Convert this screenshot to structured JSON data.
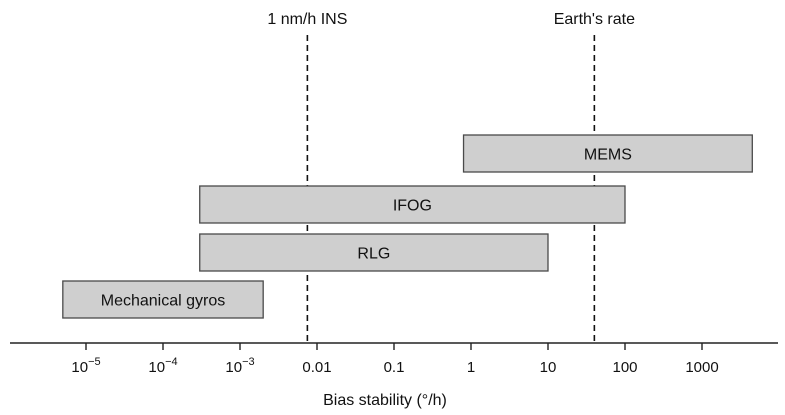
{
  "chart_data": {
    "type": "bar",
    "title": "",
    "xlabel": "Bias stability (°/h)",
    "ylabel": "",
    "x_scale": "log",
    "xlim": [
      3e-06,
      8000
    ],
    "grid": false,
    "legend": "none",
    "colors": {
      "bar_fill": "#cfcfcf",
      "bar_stroke": "#4a4a4a",
      "axis": "#222222",
      "reference_line": "#111111"
    },
    "ticks": [
      {
        "value": 1e-05,
        "base": "10",
        "exp": "−5",
        "label": ""
      },
      {
        "value": 0.0001,
        "base": "10",
        "exp": "−4",
        "label": ""
      },
      {
        "value": 0.001,
        "base": "10",
        "exp": "−3",
        "label": ""
      },
      {
        "value": 0.01,
        "base": "",
        "exp": "",
        "label": "0.01"
      },
      {
        "value": 0.1,
        "base": "",
        "exp": "",
        "label": "0.1"
      },
      {
        "value": 1,
        "base": "",
        "exp": "",
        "label": "1"
      },
      {
        "value": 10,
        "base": "",
        "exp": "",
        "label": "10"
      },
      {
        "value": 100,
        "base": "",
        "exp": "",
        "label": "100"
      },
      {
        "value": 1000,
        "base": "",
        "exp": "",
        "label": "1000"
      }
    ],
    "series": [
      {
        "name": "MEMS",
        "range": [
          0.8,
          4500
        ]
      },
      {
        "name": "IFOG",
        "range": [
          0.0003,
          100
        ]
      },
      {
        "name": "RLG",
        "range": [
          0.0003,
          10
        ]
      },
      {
        "name": "Mechanical gyros",
        "range": [
          5e-06,
          0.002
        ]
      }
    ],
    "reference_lines": [
      {
        "label": "1 nm/h INS",
        "value": 0.0075
      },
      {
        "label": "Earth's rate",
        "value": 40
      }
    ]
  }
}
